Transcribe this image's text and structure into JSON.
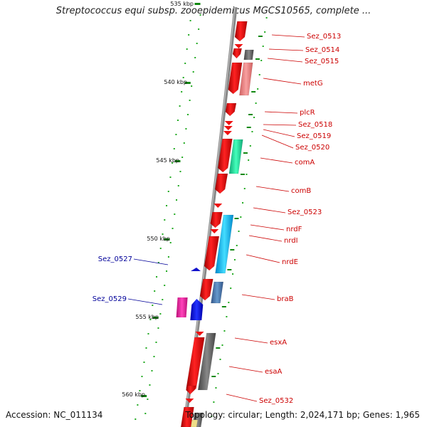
{
  "title": "Streptococcus equi subsp. zooepidemicus MGCS10565, complete ...",
  "footer": {
    "accession": "Accession: NC_011134",
    "topology": "Topology: circular; Length: 2,024,171 bp; Genes: 1,965"
  },
  "ruler": [
    {
      "label": "535 kbp"
    },
    {
      "label": "540 kbp"
    },
    {
      "label": "545 kbp"
    },
    {
      "label": "550 kbp"
    },
    {
      "label": "555 kbp"
    },
    {
      "label": "560 kbp"
    }
  ],
  "genes_right": [
    {
      "label": "Sez_0513"
    },
    {
      "label": "Sez_0514"
    },
    {
      "label": "Sez_0515"
    },
    {
      "label": "metG"
    },
    {
      "label": "plcR"
    },
    {
      "label": "Sez_0518"
    },
    {
      "label": "Sez_0519"
    },
    {
      "label": "Sez_0520"
    },
    {
      "label": "comA"
    },
    {
      "label": "comB"
    },
    {
      "label": "Sez_0523"
    },
    {
      "label": "nrdF"
    },
    {
      "label": "nrdI"
    },
    {
      "label": "nrdE"
    },
    {
      "label": "braB"
    },
    {
      "label": "esxA"
    },
    {
      "label": "esaA"
    },
    {
      "label": "Sez_0532"
    }
  ],
  "genes_left": [
    {
      "label": "Sez_0527"
    },
    {
      "label": "Sez_0529"
    }
  ],
  "colors": {
    "forward_cds": "#ee1111",
    "backbone": "#888888",
    "tick": "#118811",
    "label_red": "#cc0000",
    "label_blue": "#000099",
    "gray_cog": "#666666",
    "pink_cog": "#f08080",
    "green_cog": "#22dd99",
    "cyan_cog": "#22bbee",
    "steel_cog": "#4477aa",
    "magenta_cog": "#ee2299",
    "blue_cog": "#1111cc"
  }
}
